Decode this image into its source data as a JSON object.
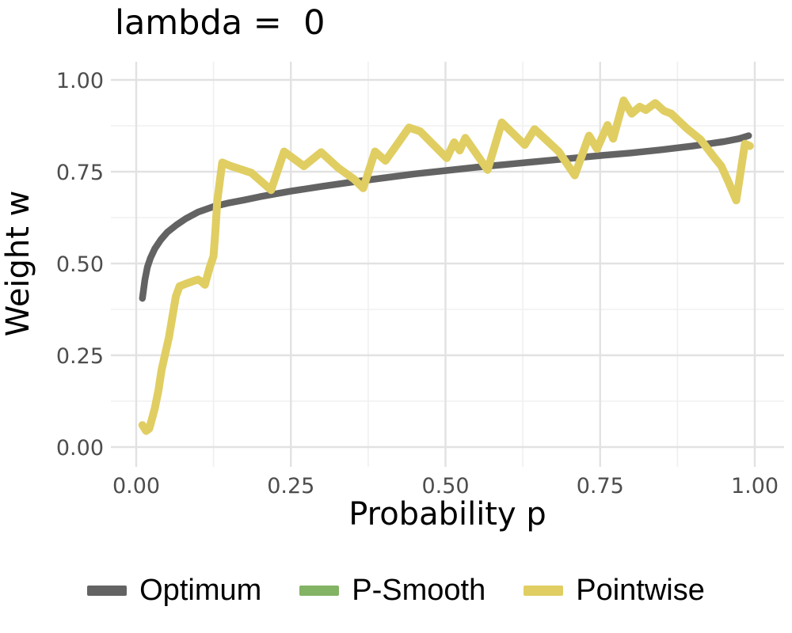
{
  "chart_data": {
    "type": "line",
    "title": "lambda =  0",
    "xlabel": "Probability p",
    "ylabel": "Weight w",
    "xlim": [
      0,
      1
    ],
    "ylim": [
      0,
      1
    ],
    "grid": "on",
    "legend_position": "bottom",
    "x_tick_values": [
      0.0,
      0.25,
      0.5,
      0.75,
      1.0
    ],
    "x_tick_labels": [
      "0.00",
      "0.25",
      "0.50",
      "0.75",
      "1.00"
    ],
    "y_tick_values": [
      0.0,
      0.25,
      0.5,
      0.75,
      1.0
    ],
    "y_tick_labels": [
      "0.00",
      "0.25",
      "0.50",
      "0.75",
      "1.00"
    ],
    "x_minor_tick_values": [
      0.125,
      0.375,
      0.625,
      0.875
    ],
    "y_minor_tick_values": [
      0.125,
      0.375,
      0.625,
      0.875
    ],
    "series": [
      {
        "name": "Optimum",
        "color": "#636363",
        "line_width": 8.5,
        "x": [
          0.01,
          0.014,
          0.018,
          0.023,
          0.03,
          0.04,
          0.05,
          0.065,
          0.08,
          0.1,
          0.125,
          0.15,
          0.175,
          0.2,
          0.25,
          0.3,
          0.35,
          0.4,
          0.45,
          0.5,
          0.55,
          0.6,
          0.65,
          0.7,
          0.75,
          0.8,
          0.85,
          0.9,
          0.95,
          0.975,
          0.99
        ],
        "y": [
          0.405,
          0.455,
          0.49,
          0.515,
          0.54,
          0.565,
          0.585,
          0.605,
          0.622,
          0.64,
          0.655,
          0.665,
          0.673,
          0.682,
          0.697,
          0.71,
          0.722,
          0.733,
          0.744,
          0.753,
          0.762,
          0.77,
          0.778,
          0.786,
          0.794,
          0.801,
          0.81,
          0.82,
          0.832,
          0.84,
          0.848
        ]
      },
      {
        "name": "P-Smooth",
        "color": "#83b364",
        "line_width": 10,
        "x": [],
        "y": []
      },
      {
        "name": "Pointwise",
        "color": "#e0ce62",
        "line_width": 10,
        "x": [
          0.01,
          0.016,
          0.021,
          0.026,
          0.03,
          0.036,
          0.041,
          0.047,
          0.053,
          0.058,
          0.064,
          0.07,
          0.082,
          0.094,
          0.1,
          0.106,
          0.111,
          0.119,
          0.125,
          0.128,
          0.131,
          0.139,
          0.152,
          0.186,
          0.218,
          0.239,
          0.271,
          0.299,
          0.327,
          0.352,
          0.367,
          0.386,
          0.403,
          0.42,
          0.441,
          0.459,
          0.502,
          0.514,
          0.523,
          0.532,
          0.568,
          0.591,
          0.628,
          0.644,
          0.683,
          0.709,
          0.732,
          0.745,
          0.762,
          0.771,
          0.788,
          0.801,
          0.814,
          0.824,
          0.839,
          0.853,
          0.865,
          0.89,
          0.912,
          0.934,
          0.946,
          0.958,
          0.97,
          0.984,
          0.992
        ],
        "y": [
          0.06,
          0.044,
          0.05,
          0.08,
          0.105,
          0.155,
          0.21,
          0.255,
          0.3,
          0.35,
          0.41,
          0.438,
          0.446,
          0.453,
          0.456,
          0.45,
          0.442,
          0.49,
          0.52,
          0.59,
          0.67,
          0.775,
          0.766,
          0.747,
          0.7,
          0.805,
          0.765,
          0.803,
          0.76,
          0.73,
          0.705,
          0.805,
          0.78,
          0.82,
          0.87,
          0.86,
          0.787,
          0.83,
          0.808,
          0.842,
          0.755,
          0.884,
          0.823,
          0.866,
          0.805,
          0.74,
          0.848,
          0.812,
          0.877,
          0.84,
          0.944,
          0.908,
          0.927,
          0.918,
          0.937,
          0.916,
          0.908,
          0.868,
          0.838,
          0.79,
          0.765,
          0.72,
          0.672,
          0.826,
          0.82
        ]
      }
    ],
    "panel": {
      "grid_major_color": "#e2e2e2",
      "grid_minor_color": "#f0f0f0"
    }
  }
}
